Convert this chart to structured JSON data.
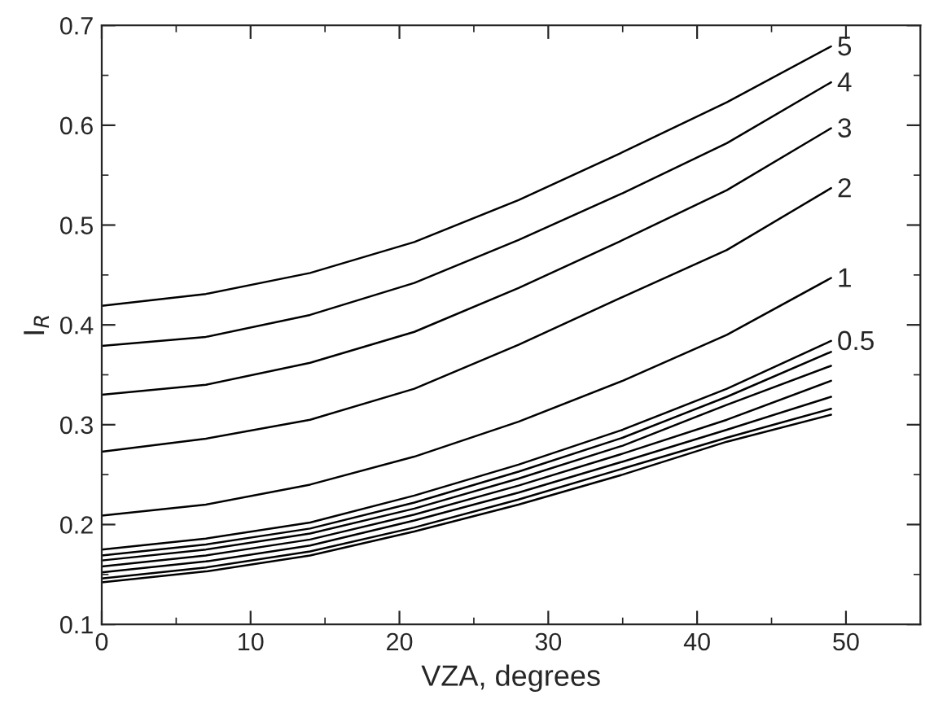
{
  "chart_data": {
    "type": "line",
    "xlabel": "VZA, degrees",
    "ylabel": "I$_{R}$",
    "x": [
      0,
      7,
      14,
      21,
      28,
      35,
      42,
      49
    ],
    "xlim": [
      0,
      55
    ],
    "ylim": [
      0.1,
      0.7
    ],
    "xticks": [
      0,
      {
        "value": 5,
        "label": null
      },
      10,
      {
        "value": 15,
        "label": null
      },
      20,
      {
        "value": 25,
        "label": null
      },
      30,
      {
        "value": 35,
        "label": null
      },
      40,
      {
        "value": 45,
        "label": null
      },
      50
    ],
    "yticks": [
      0.1,
      {
        "value": 0.15,
        "label": null
      },
      0.2,
      {
        "value": 0.25,
        "label": null
      },
      0.3,
      {
        "value": 0.35,
        "label": null
      },
      0.4,
      {
        "value": 0.45,
        "label": null
      },
      0.5,
      {
        "value": 0.55,
        "label": null
      },
      0.6,
      {
        "value": 0.65,
        "label": null
      },
      0.7
    ],
    "grid": false,
    "legend": false,
    "marker": "none",
    "line_style": "solid",
    "series": [
      {
        "name": "5",
        "color": "#000000",
        "values": [
          0.419,
          0.431,
          0.452,
          0.483,
          0.525,
          0.573,
          0.623,
          0.679
        ]
      },
      {
        "name": "4",
        "color": "#000000",
        "values": [
          0.379,
          0.388,
          0.41,
          0.442,
          0.485,
          0.532,
          0.582,
          0.643
        ]
      },
      {
        "name": "3",
        "color": "#000000",
        "values": [
          0.33,
          0.34,
          0.362,
          0.393,
          0.437,
          0.485,
          0.535,
          0.597
        ]
      },
      {
        "name": "2",
        "color": "#000000",
        "values": [
          0.273,
          0.286,
          0.305,
          0.336,
          0.38,
          0.428,
          0.475,
          0.537
        ]
      },
      {
        "name": "1",
        "color": "#000000",
        "values": [
          0.209,
          0.22,
          0.24,
          0.268,
          0.303,
          0.344,
          0.39,
          0.447
        ]
      },
      {
        "name": "0.5",
        "color": "#000000",
        "values": [
          0.175,
          0.186,
          0.202,
          0.229,
          0.26,
          0.295,
          0.336,
          0.384
        ]
      },
      {
        "color": "#000000",
        "values": [
          0.169,
          0.18,
          0.196,
          0.222,
          0.253,
          0.287,
          0.328,
          0.373
        ]
      },
      {
        "color": "#000000",
        "values": [
          0.164,
          0.175,
          0.191,
          0.216,
          0.246,
          0.279,
          0.32,
          0.359
        ]
      },
      {
        "color": "#000000",
        "values": [
          0.158,
          0.169,
          0.185,
          0.21,
          0.239,
          0.271,
          0.305,
          0.344
        ]
      },
      {
        "color": "#000000",
        "values": [
          0.152,
          0.163,
          0.179,
          0.204,
          0.232,
          0.263,
          0.295,
          0.328
        ]
      },
      {
        "color": "#000000",
        "values": [
          0.146,
          0.157,
          0.173,
          0.197,
          0.225,
          0.256,
          0.287,
          0.316
        ]
      },
      {
        "color": "#000000",
        "values": [
          0.142,
          0.153,
          0.169,
          0.193,
          0.22,
          0.25,
          0.283,
          0.31
        ]
      }
    ]
  }
}
